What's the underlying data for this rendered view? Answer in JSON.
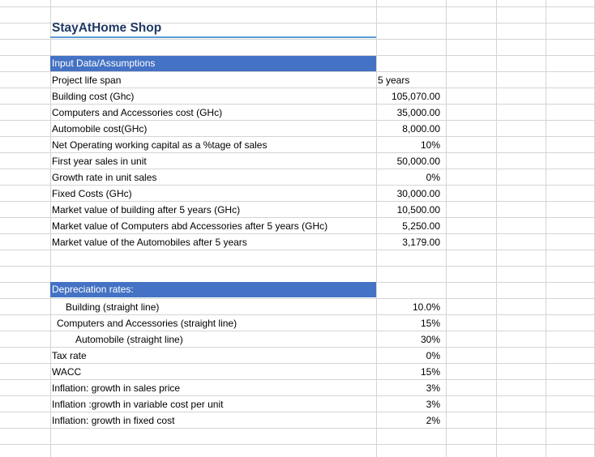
{
  "title": "StayAtHome Shop",
  "input_section": {
    "header": "Input Data/Assumptions",
    "rows": [
      {
        "label": "Project life span",
        "value": "5 years"
      },
      {
        "label": "Building cost (Ghc)",
        "value": "105,070.00"
      },
      {
        "label": "Computers and Accessories cost (GHc)",
        "value": "35,000.00"
      },
      {
        "label": "Automobile cost(GHc)",
        "value": "8,000.00"
      },
      {
        "label": "Net Operating working capital as a %tage of sales",
        "value": "10%"
      },
      {
        "label": "First year sales in unit",
        "value": "50,000.00"
      },
      {
        "label": "Growth rate in unit sales",
        "value": "0%"
      },
      {
        "label": "Fixed Costs (GHc)",
        "value": "30,000.00"
      },
      {
        "label": "Market value of building after 5 years (GHc)",
        "value": "10,500.00"
      },
      {
        "label": "Market value of Computers abd Accessories after 5 years (GHc)",
        "value": "5,250.00"
      },
      {
        "label": "Market value of the Automobiles after 5 years",
        "value": "3,179.00"
      }
    ]
  },
  "depreciation_section": {
    "header": "Depreciation rates:",
    "rows": [
      {
        "label": "Building (straight line)",
        "value": "10.0%"
      },
      {
        "label": "Computers and  Accessories (straight line)",
        "value": "15%"
      },
      {
        "label": "Automobile (straight line)",
        "value": "30%"
      },
      {
        "label": "Tax rate",
        "value": "0%"
      },
      {
        "label": "WACC",
        "value": "15%"
      },
      {
        "label": "Inflation: growth in sales price",
        "value": "3%"
      },
      {
        "label": "Inflation :growth in variable cost per unit",
        "value": "3%"
      },
      {
        "label": "Inflation: growth in fixed cost",
        "value": "2%"
      }
    ]
  },
  "colors": {
    "header_fill": "#4472c4",
    "title_text": "#1f3864",
    "title_border": "#5b9bd5",
    "gridline": "#d4d4d4"
  }
}
